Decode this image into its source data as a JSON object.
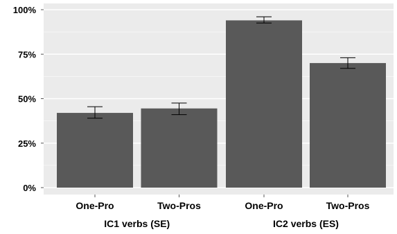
{
  "chart_data": {
    "type": "bar",
    "categories": [
      "One-Pro",
      "Two-Pros",
      "One-Pro",
      "Two-Pros"
    ],
    "groups": [
      {
        "label": "IC1 verbs (SE)",
        "categories": [
          0,
          1
        ]
      },
      {
        "label": "IC2 verbs (ES)",
        "categories": [
          2,
          3
        ]
      }
    ],
    "values": [
      42,
      44.5,
      94,
      70
    ],
    "error_bars": [
      {
        "low": 39,
        "high": 45.5
      },
      {
        "low": 41,
        "high": 47.5
      },
      {
        "low": 92.5,
        "high": 96
      },
      {
        "low": 67,
        "high": 73
      }
    ],
    "yticks": [
      "0%",
      "25%",
      "50%",
      "75%",
      "100%"
    ],
    "ylim": [
      0,
      100
    ],
    "grid": true,
    "colors": {
      "bar": "#595959",
      "panel": "#ebebeb",
      "gridline": "#ffffff",
      "errorbar": "#000000"
    }
  }
}
